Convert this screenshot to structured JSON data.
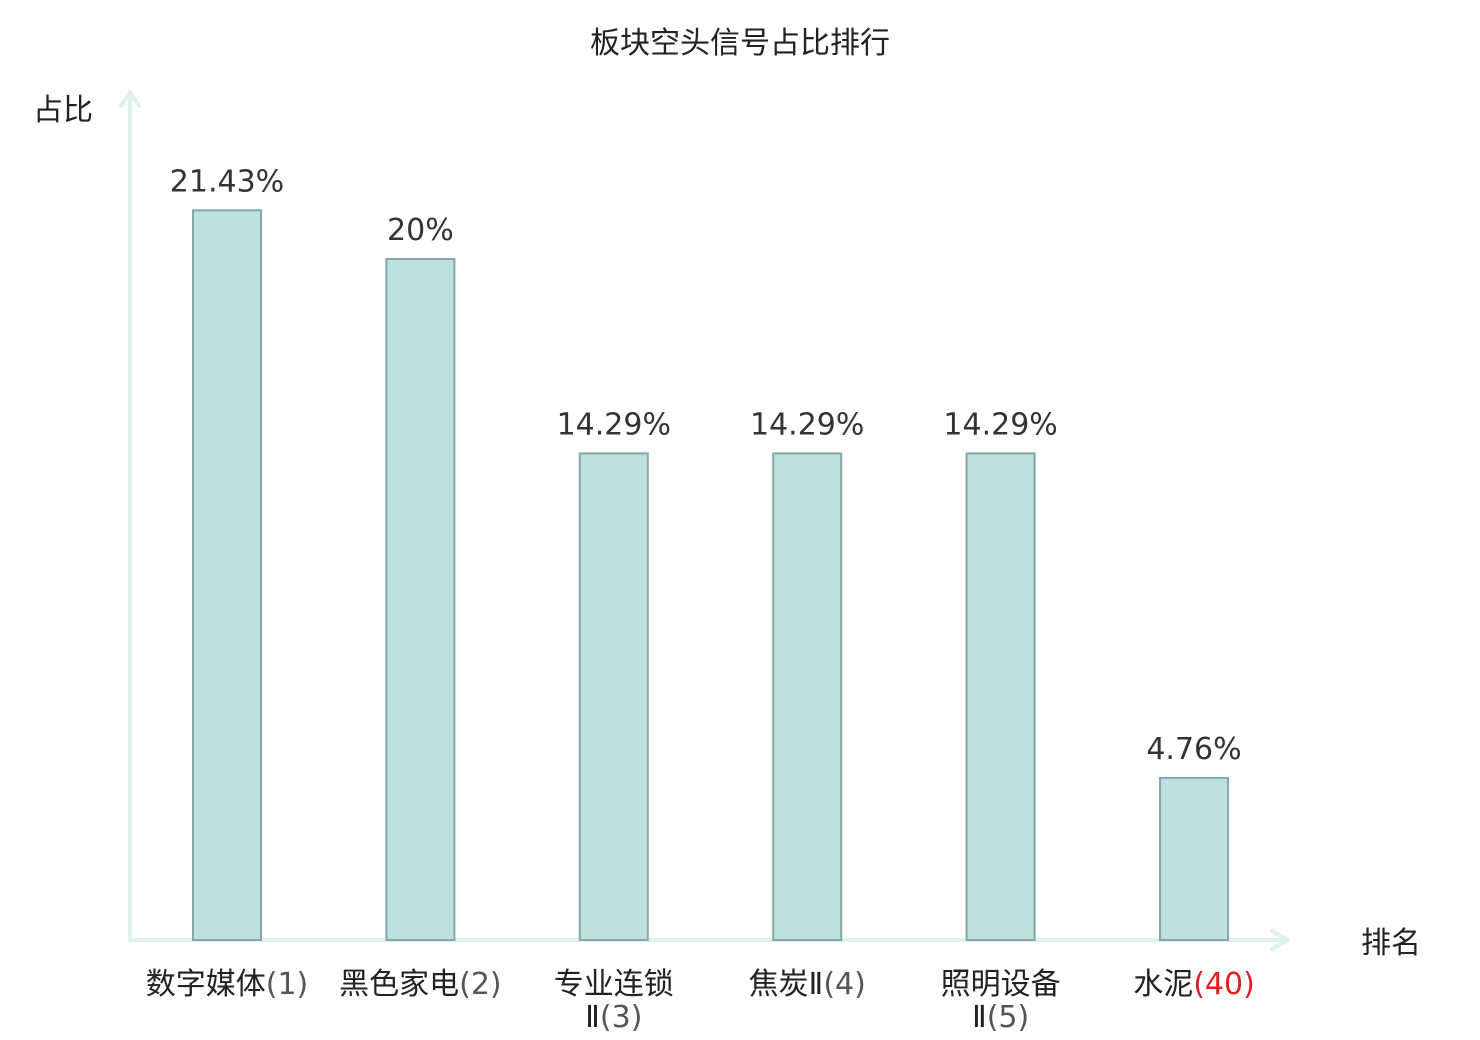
{
  "chart_data": {
    "type": "bar",
    "title": "板块空头信号占比排行",
    "ylabel": "占比",
    "xlabel": "排名",
    "ylim": [
      0,
      25
    ],
    "grid": false,
    "categories": [
      {
        "name_lines": [
          "数字媒体"
        ],
        "rank": "(1)",
        "highlight": false
      },
      {
        "name_lines": [
          "黑色家电"
        ],
        "rank": "(2)",
        "highlight": false
      },
      {
        "name_lines": [
          "专业连锁",
          "Ⅱ"
        ],
        "rank": "(3)",
        "highlight": false
      },
      {
        "name_lines": [
          "焦炭Ⅱ"
        ],
        "rank": "(4)",
        "highlight": false
      },
      {
        "name_lines": [
          "照明设备",
          "Ⅱ"
        ],
        "rank": "(5)",
        "highlight": false
      },
      {
        "name_lines": [
          "水泥"
        ],
        "rank": "(40)",
        "highlight": true
      }
    ],
    "values": [
      21.43,
      20,
      14.29,
      14.29,
      14.29,
      4.76
    ],
    "value_labels": [
      "21.43%",
      "20%",
      "14.29%",
      "14.29%",
      "14.29%",
      "4.76%"
    ]
  },
  "colors": {
    "bar_fill": "#bde0e2",
    "bar_stroke": "#86a6a8",
    "axis": "#dff1ee",
    "highlight": "#e02020",
    "text": "#222222",
    "value_text": "#333333"
  }
}
